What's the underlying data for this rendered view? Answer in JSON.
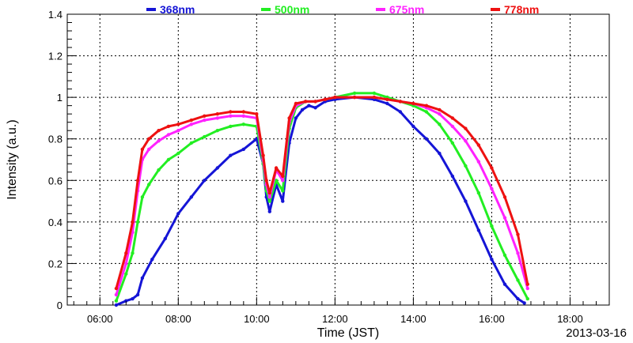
{
  "chart_data": {
    "type": "scatter",
    "title": "",
    "xlabel": "Time (JST)",
    "ylabel": "Intensity (a.u.)",
    "date_label": "2013-03-16",
    "xlim": [
      "05:10",
      "19:00"
    ],
    "ylim": [
      0,
      1.4
    ],
    "x_ticks": [
      "06:00",
      "08:00",
      "10:00",
      "12:00",
      "14:00",
      "16:00",
      "18:00"
    ],
    "y_ticks": [
      "0",
      "0.2",
      "0.4",
      "0.6",
      "0.8",
      "1",
      "1.2",
      "1.4"
    ],
    "grid": true,
    "legend_position": "top",
    "series": [
      {
        "name": "368nm",
        "color": "#1515d6",
        "x": [
          "06:25",
          "06:40",
          "06:50",
          "06:58",
          "07:05",
          "07:20",
          "07:40",
          "08:00",
          "08:20",
          "08:40",
          "09:00",
          "09:20",
          "09:40",
          "10:00",
          "10:10",
          "10:15",
          "10:20",
          "10:30",
          "10:40",
          "10:50",
          "11:00",
          "11:10",
          "11:20",
          "11:30",
          "11:45",
          "12:00",
          "12:30",
          "13:00",
          "13:20",
          "13:40",
          "14:00",
          "14:20",
          "14:40",
          "15:00",
          "15:20",
          "15:40",
          "16:00",
          "16:20",
          "16:40",
          "16:50"
        ],
        "y": [
          0.0,
          0.02,
          0.03,
          0.05,
          0.13,
          0.22,
          0.32,
          0.44,
          0.52,
          0.6,
          0.66,
          0.72,
          0.75,
          0.8,
          0.68,
          0.52,
          0.45,
          0.58,
          0.5,
          0.78,
          0.9,
          0.94,
          0.96,
          0.95,
          0.98,
          0.99,
          1.0,
          0.99,
          0.97,
          0.93,
          0.86,
          0.8,
          0.73,
          0.62,
          0.5,
          0.36,
          0.22,
          0.1,
          0.03,
          0.01
        ]
      },
      {
        "name": "500nm",
        "color": "#22ee22",
        "x": [
          "06:25",
          "06:40",
          "06:50",
          "06:58",
          "07:05",
          "07:15",
          "07:30",
          "07:45",
          "08:00",
          "08:20",
          "08:40",
          "09:00",
          "09:20",
          "09:40",
          "10:00",
          "10:10",
          "10:15",
          "10:20",
          "10:30",
          "10:40",
          "10:50",
          "11:00",
          "11:15",
          "11:30",
          "11:45",
          "12:00",
          "12:30",
          "13:00",
          "13:20",
          "13:40",
          "14:00",
          "14:20",
          "14:40",
          "15:00",
          "15:20",
          "15:40",
          "16:00",
          "16:20",
          "16:40",
          "16:55"
        ],
        "y": [
          0.02,
          0.15,
          0.25,
          0.4,
          0.52,
          0.58,
          0.65,
          0.7,
          0.73,
          0.78,
          0.81,
          0.84,
          0.86,
          0.87,
          0.86,
          0.68,
          0.55,
          0.5,
          0.6,
          0.55,
          0.85,
          0.95,
          0.98,
          0.98,
          0.99,
          1.0,
          1.02,
          1.02,
          1.0,
          0.98,
          0.96,
          0.93,
          0.87,
          0.78,
          0.67,
          0.54,
          0.38,
          0.24,
          0.12,
          0.03
        ]
      },
      {
        "name": "675nm",
        "color": "#ff22ff",
        "x": [
          "06:25",
          "06:40",
          "06:50",
          "06:58",
          "07:05",
          "07:15",
          "07:30",
          "07:45",
          "08:00",
          "08:20",
          "08:40",
          "09:00",
          "09:20",
          "09:40",
          "10:00",
          "10:10",
          "10:15",
          "10:20",
          "10:30",
          "10:40",
          "10:50",
          "11:00",
          "11:15",
          "11:30",
          "11:45",
          "12:00",
          "12:30",
          "13:00",
          "13:20",
          "13:40",
          "14:00",
          "14:20",
          "14:40",
          "15:00",
          "15:20",
          "15:40",
          "16:00",
          "16:20",
          "16:40",
          "16:55"
        ],
        "y": [
          0.05,
          0.2,
          0.35,
          0.55,
          0.7,
          0.75,
          0.79,
          0.82,
          0.84,
          0.87,
          0.89,
          0.9,
          0.91,
          0.91,
          0.9,
          0.7,
          0.58,
          0.52,
          0.65,
          0.6,
          0.88,
          0.96,
          0.98,
          0.98,
          0.99,
          1.0,
          1.0,
          1.0,
          0.99,
          0.98,
          0.97,
          0.95,
          0.92,
          0.86,
          0.79,
          0.69,
          0.56,
          0.42,
          0.25,
          0.08
        ]
      },
      {
        "name": "778nm",
        "color": "#ee1111",
        "x": [
          "06:25",
          "06:40",
          "06:50",
          "06:58",
          "07:05",
          "07:15",
          "07:30",
          "07:45",
          "08:00",
          "08:20",
          "08:40",
          "09:00",
          "09:20",
          "09:40",
          "10:00",
          "10:10",
          "10:15",
          "10:20",
          "10:30",
          "10:40",
          "10:50",
          "11:00",
          "11:15",
          "11:30",
          "11:45",
          "12:00",
          "12:30",
          "13:00",
          "13:20",
          "13:40",
          "14:00",
          "14:20",
          "14:40",
          "15:00",
          "15:20",
          "15:40",
          "16:00",
          "16:20",
          "16:40",
          "16:55"
        ],
        "y": [
          0.08,
          0.25,
          0.4,
          0.6,
          0.75,
          0.8,
          0.84,
          0.86,
          0.87,
          0.89,
          0.91,
          0.92,
          0.93,
          0.93,
          0.92,
          0.72,
          0.6,
          0.54,
          0.66,
          0.62,
          0.9,
          0.97,
          0.98,
          0.98,
          0.99,
          1.0,
          1.0,
          1.0,
          0.99,
          0.98,
          0.97,
          0.96,
          0.94,
          0.9,
          0.85,
          0.77,
          0.66,
          0.52,
          0.34,
          0.1
        ]
      }
    ]
  }
}
